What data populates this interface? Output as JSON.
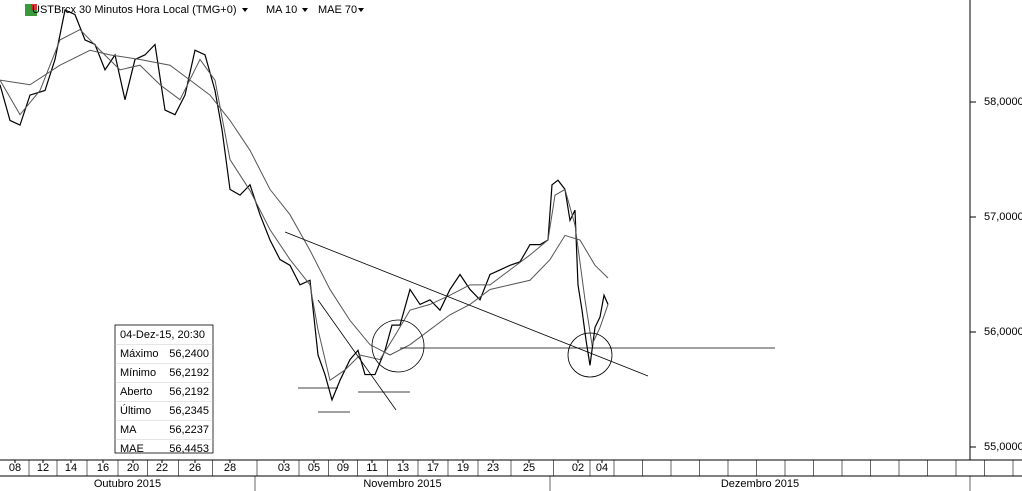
{
  "chart_data": {
    "type": "line",
    "title": "USTBrcx 30 Minutos Hora Local (TMG+0)",
    "xlim": [
      0,
      97
    ],
    "ylim": [
      54.887,
      58.887
    ],
    "yticks": [
      {
        "value": 55,
        "label": "55,0000"
      },
      {
        "value": 56,
        "label": "56,0000"
      },
      {
        "value": 57,
        "label": "57,0000"
      },
      {
        "value": 58,
        "label": "58,0000"
      }
    ],
    "xticks": [
      {
        "value": 1.5,
        "label": "08"
      },
      {
        "value": 4.3,
        "label": "12"
      },
      {
        "value": 7.1,
        "label": "14"
      },
      {
        "value": 10.3,
        "label": "16"
      },
      {
        "value": 13.3,
        "label": "20"
      },
      {
        "value": 16.2,
        "label": "22"
      },
      {
        "value": 19.5,
        "label": "26"
      },
      {
        "value": 23.0,
        "label": "28"
      },
      {
        "value": 28.4,
        "label": "03"
      },
      {
        "value": 31.4,
        "label": "05"
      },
      {
        "value": 34.3,
        "label": "09"
      },
      {
        "value": 37.2,
        "label": "11"
      },
      {
        "value": 40.3,
        "label": "13"
      },
      {
        "value": 43.3,
        "label": "17"
      },
      {
        "value": 46.3,
        "label": "19"
      },
      {
        "value": 49.3,
        "label": "23"
      },
      {
        "value": 52.9,
        "label": "25"
      },
      {
        "value": 57.8,
        "label": "02"
      },
      {
        "value": 60.2,
        "label": "04"
      }
    ],
    "x_periods": [
      {
        "label": "Outubro 2015",
        "start": 0,
        "end": 25.5
      },
      {
        "label": "Novembro 2015",
        "start": 25.5,
        "end": 55.0
      },
      {
        "label": "Dezembro 2015",
        "start": 55.0,
        "end": 97
      }
    ],
    "series": [
      {
        "color": "#000000",
        "x": [
          0,
          1,
          2,
          3,
          4.5,
          5.5,
          6.5,
          7.5,
          8.5,
          9.5,
          10.5,
          11.5,
          12.5,
          13.5,
          14.5,
          15.5,
          16.5,
          17.5,
          18.5,
          19.5,
          20.5,
          21.5,
          22.2,
          23,
          24,
          25,
          26,
          27,
          28,
          29,
          30,
          31,
          31.8,
          32.5,
          33.2,
          34,
          35,
          35.8,
          36.5,
          37.5,
          38.5,
          39.2,
          40,
          41,
          42,
          43,
          44,
          45,
          46,
          47,
          48,
          49,
          50,
          51,
          52,
          53,
          54,
          54.8,
          55.2,
          55.8,
          56.5,
          57,
          57.5,
          57.8,
          58.2,
          58.6,
          59,
          59.5,
          60,
          60.4,
          60.8
        ],
        "values": [
          58.15,
          57.84,
          57.8,
          58.06,
          58.1,
          58.37,
          58.8,
          58.76,
          58.54,
          58.5,
          58.28,
          58.41,
          58.02,
          58.37,
          58.41,
          58.5,
          57.93,
          57.89,
          58.06,
          58.45,
          58.41,
          58.1,
          57.76,
          57.24,
          57.19,
          57.28,
          57.02,
          56.8,
          56.63,
          56.58,
          56.41,
          56.45,
          55.8,
          55.63,
          55.41,
          55.58,
          55.76,
          55.84,
          55.63,
          55.63,
          55.84,
          56.06,
          56.06,
          56.37,
          56.24,
          56.28,
          56.19,
          56.37,
          56.5,
          56.37,
          56.28,
          56.5,
          56.54,
          56.58,
          56.61,
          56.76,
          56.76,
          56.8,
          57.28,
          57.32,
          57.24,
          56.97,
          57.06,
          56.41,
          56.19,
          55.93,
          55.71,
          56.04,
          56.13,
          56.32,
          56.24
        ]
      },
      {
        "name": "MA 10",
        "color": "#555555",
        "x": [
          0,
          2,
          4,
          6,
          8,
          10,
          12,
          14,
          16,
          18,
          20,
          21.5,
          23,
          25,
          27,
          29,
          31,
          31.8,
          33,
          34.5,
          36,
          38,
          39.5,
          41,
          43,
          45,
          47,
          49,
          51,
          53,
          54.8,
          55.5,
          56.5,
          57.5,
          58.5,
          59.2,
          60,
          60.8
        ],
        "values": [
          58.19,
          57.89,
          58.1,
          58.54,
          58.63,
          58.45,
          58.28,
          58.32,
          58.15,
          58.02,
          58.37,
          58.19,
          57.5,
          57.23,
          56.89,
          56.63,
          56.41,
          56.02,
          55.58,
          55.67,
          55.8,
          55.76,
          55.97,
          56.19,
          56.24,
          56.32,
          56.41,
          56.41,
          56.54,
          56.67,
          56.8,
          57.19,
          57.24,
          56.93,
          56.28,
          55.89,
          56.04,
          56.24
        ]
      },
      {
        "name": "MAE 70",
        "color": "#555555",
        "x": [
          0,
          3,
          6,
          9,
          11,
          14,
          17,
          19,
          21,
          23,
          25,
          27,
          29,
          31,
          33,
          35,
          37,
          39,
          41,
          43,
          45,
          47,
          49,
          51,
          53,
          55,
          56.5,
          58,
          59.5,
          60.8
        ],
        "values": [
          58.19,
          58.15,
          58.32,
          58.45,
          58.41,
          58.37,
          58.32,
          58.19,
          58.06,
          57.84,
          57.58,
          57.24,
          57.02,
          56.71,
          56.37,
          56.1,
          55.89,
          55.8,
          55.89,
          56.02,
          56.15,
          56.24,
          56.37,
          56.41,
          56.45,
          56.63,
          56.84,
          56.8,
          56.58,
          56.47
        ]
      }
    ],
    "info_box": {
      "title": "04-Dez-15, 20:30",
      "rows": [
        [
          "Máximo",
          "56,2400"
        ],
        [
          "Mínimo",
          "56,2192"
        ],
        [
          "Aberto",
          "56,2192"
        ],
        [
          "Último",
          "56,2345"
        ],
        [
          "MA",
          "56,2237"
        ],
        [
          "MAE",
          "56,4453"
        ]
      ]
    }
  }
}
